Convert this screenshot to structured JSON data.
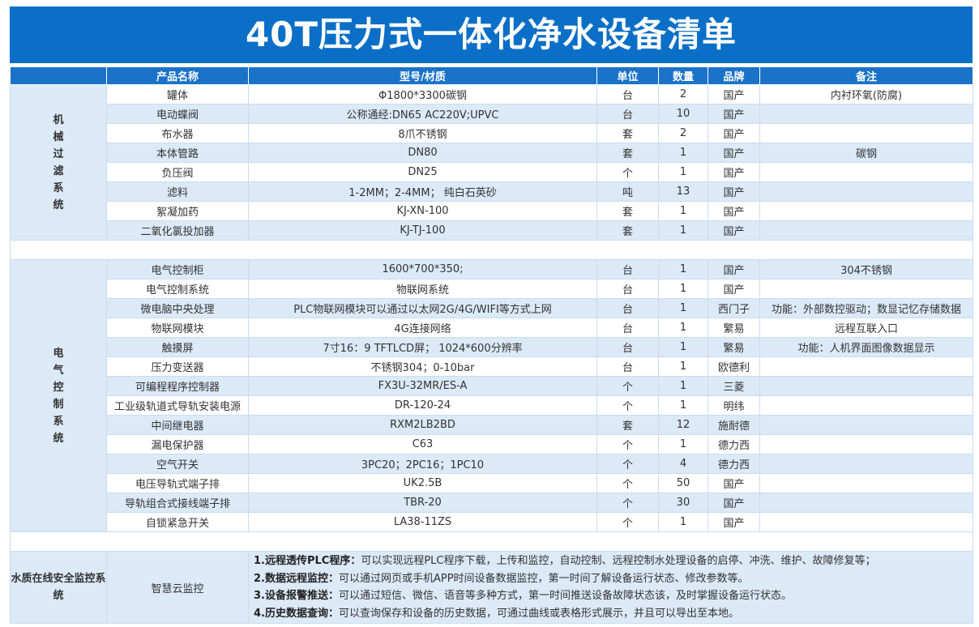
{
  "header": {
    "title": "40T压力式一体化净水设备清单"
  },
  "table": {
    "columns": [
      "产品名称",
      "型号/材质",
      "单位",
      "数量",
      "品牌",
      "备注"
    ],
    "sections": [
      {
        "group": "机械过滤系统",
        "rows": [
          {
            "name": "罐体",
            "model": "Φ1800*3300碳钢",
            "unit": "台",
            "qty": 2,
            "brand": "国产",
            "note": "内衬环氧(防腐)"
          },
          {
            "name": "电动蝶阀",
            "model": "公称通经:DN65 AC220V;UPVC",
            "unit": "台",
            "qty": 10,
            "brand": "国产"
          },
          {
            "name": "布水器",
            "model": "8爪不锈钢",
            "unit": "套",
            "qty": 2,
            "brand": "国产"
          },
          {
            "name": "本体管路",
            "model": "DN80",
            "unit": "套",
            "qty": 1,
            "brand": "国产",
            "note": "碳钢"
          },
          {
            "name": "负压阀",
            "model": "DN25",
            "unit": "个",
            "qty": 1,
            "brand": "国产"
          },
          {
            "name": "滤料",
            "model": "1-2MM；2-4MM； 纯白石英砂",
            "unit": "吨",
            "qty": 13,
            "brand": "国产"
          },
          {
            "name": "絮凝加药",
            "model": "KJ-XN-100",
            "unit": "套",
            "qty": 1,
            "brand": "国产"
          },
          {
            "name": "二氧化氯投加器",
            "model": "KJ-TJ-100",
            "unit": "套",
            "qty": 1,
            "brand": "国产"
          }
        ]
      },
      {
        "group": "电气控制系统",
        "rows": [
          {
            "name": "电气控制柜",
            "model": "1600*700*350;",
            "unit": "台",
            "qty": 1,
            "brand": "国产",
            "note": "304不锈钢"
          },
          {
            "name": "电气控制系统",
            "model": "物联网系统",
            "unit": "台",
            "qty": 1,
            "brand": "国产"
          },
          {
            "name": "微电脑中央处理",
            "model": "PLC物联网模块可以通过以太网2G/4G/WIFI等方式上网",
            "unit": "台",
            "qty": 1,
            "brand": "西门子",
            "note": "功能：外部数控驱动；数显记忆存储数据"
          },
          {
            "name": "物联网模块",
            "model": "4G连接网络",
            "unit": "台",
            "qty": 1,
            "brand": "繁易",
            "note": "远程互联入口"
          },
          {
            "name": "触摸屏",
            "model": "7寸16：9 TFTLCD屏； 1024*600分辨率",
            "unit": "台",
            "qty": 1,
            "brand": "繁易",
            "note": "功能：人机界面图像数据显示"
          },
          {
            "name": "压力变送器",
            "model": "不锈钢304；0-10bar",
            "unit": "台",
            "qty": 1,
            "brand": "欧德利"
          },
          {
            "name": "可编程程序控制器",
            "model": "FX3U-32MR/ES-A",
            "unit": "个",
            "qty": 1,
            "brand": "三菱"
          },
          {
            "name": "工业级轨道式导轨安装电源",
            "model": "DR-120-24",
            "unit": "个",
            "qty": 1,
            "brand": "明纬"
          },
          {
            "name": "中间继电器",
            "model": "RXM2LB2BD",
            "unit": "套",
            "qty": 12,
            "brand": "施耐德"
          },
          {
            "name": "漏电保护器",
            "model": "C63",
            "unit": "个",
            "qty": 1,
            "brand": "德力西"
          },
          {
            "name": "空气开关",
            "model": "3PC20；2PC16；1PC10",
            "unit": "个",
            "qty": 4,
            "brand": "德力西"
          },
          {
            "name": "电压导轨式端子排",
            "model": "UK2.5B",
            "unit": "个",
            "qty": 50,
            "brand": "国产"
          },
          {
            "name": "导轨组合式接线端子排",
            "model": "TBR-20",
            "unit": "个",
            "qty": 30,
            "brand": "国产"
          },
          {
            "name": "自锁紧急开关",
            "model": "LA38-11ZS",
            "unit": "个",
            "qty": 1,
            "brand": "国产"
          }
        ]
      }
    ],
    "monitor": {
      "group": "水质在线安全监控系统",
      "name": "智慧云监控",
      "features": [
        {
          "title": "1.远程透传PLC程序：",
          "text": "可以实现远程PLC程序下载，上传和监控，自动控制、远程控制水处理设备的启停、冲洗、维护、故障修复等；"
        },
        {
          "title": "2.数据远程监控：",
          "text": "可以通过网页或手机APP时间设备数据监控，第一时间了解设备运行状态、修改参数等。"
        },
        {
          "title": "3.设备报警推送：",
          "text": "可以通过短信、微信、语音等多种方式，第一时间推送设备故障状态该，及时掌握设备运行状态。"
        },
        {
          "title": "4.历史数据查询：",
          "text": "可以查询保存和设备的历史数据，可通过曲线或表格形式展示，并且可以导出至本地。"
        }
      ]
    }
  }
}
